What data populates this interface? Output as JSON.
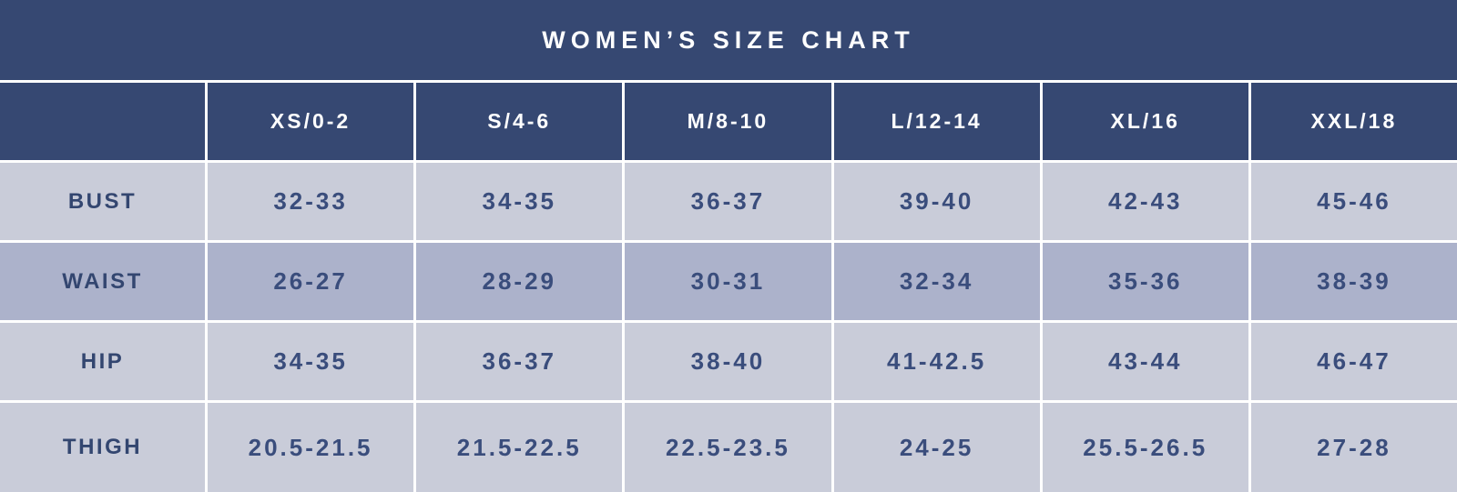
{
  "chart_data": {
    "type": "table",
    "title": "WOMEN’S SIZE CHART",
    "columns": [
      "",
      "XS/0-2",
      "S/4-6",
      "M/8-10",
      "L/12-14",
      "XL/16",
      "XXL/18"
    ],
    "rows": [
      {
        "label": "BUST",
        "values": [
          "32-33",
          "34-35",
          "36-37",
          "39-40",
          "42-43",
          "45-46"
        ]
      },
      {
        "label": "WAIST",
        "values": [
          "26-27",
          "28-29",
          "30-31",
          "32-34",
          "35-36",
          "38-39"
        ]
      },
      {
        "label": "HIP",
        "values": [
          "34-35",
          "36-37",
          "38-40",
          "41-42.5",
          "43-44",
          "46-47"
        ]
      },
      {
        "label": "THIGH",
        "values": [
          "20.5-21.5",
          "21.5-22.5",
          "22.5-23.5",
          "24-25",
          "25.5-26.5",
          "27-28"
        ]
      }
    ],
    "row_shading": [
      "light",
      "medium",
      "light",
      "light"
    ],
    "layout": {
      "legend": "none",
      "grid": "white-separators"
    },
    "colors": {
      "header_bg": "#364872",
      "header_text": "#ffffff",
      "row_light_bg": "#c9ccd9",
      "row_medium_bg": "#acb2cb",
      "label_text": "#334670",
      "value_text": "#3a4d7c",
      "separator": "#ffffff"
    }
  }
}
